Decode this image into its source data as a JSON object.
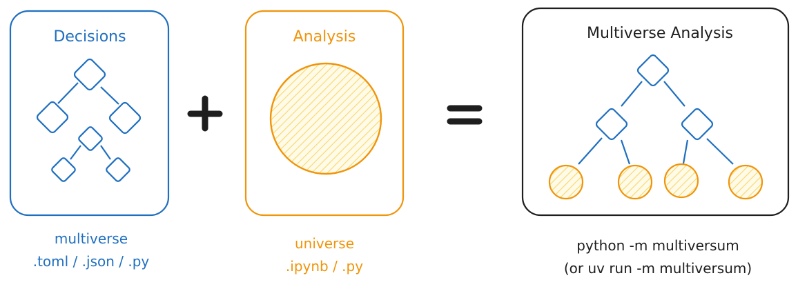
{
  "colors": {
    "blue": "#1f6fc0",
    "orange": "#f0940a",
    "dark": "#1e1e1e",
    "fill": "#fde99b"
  },
  "panels": {
    "decisions": {
      "title": "Decisions",
      "caption_line1": "multiverse",
      "caption_line2": ".toml / .json / .py"
    },
    "analysis": {
      "title": "Analysis",
      "caption_line1": "universe",
      "caption_line2": ".ipynb / .py"
    },
    "multiverse": {
      "title": "Multiverse Analysis",
      "caption_line1": "python -m multiversum",
      "caption_line2": "(or uv run -m multiversum)"
    }
  }
}
